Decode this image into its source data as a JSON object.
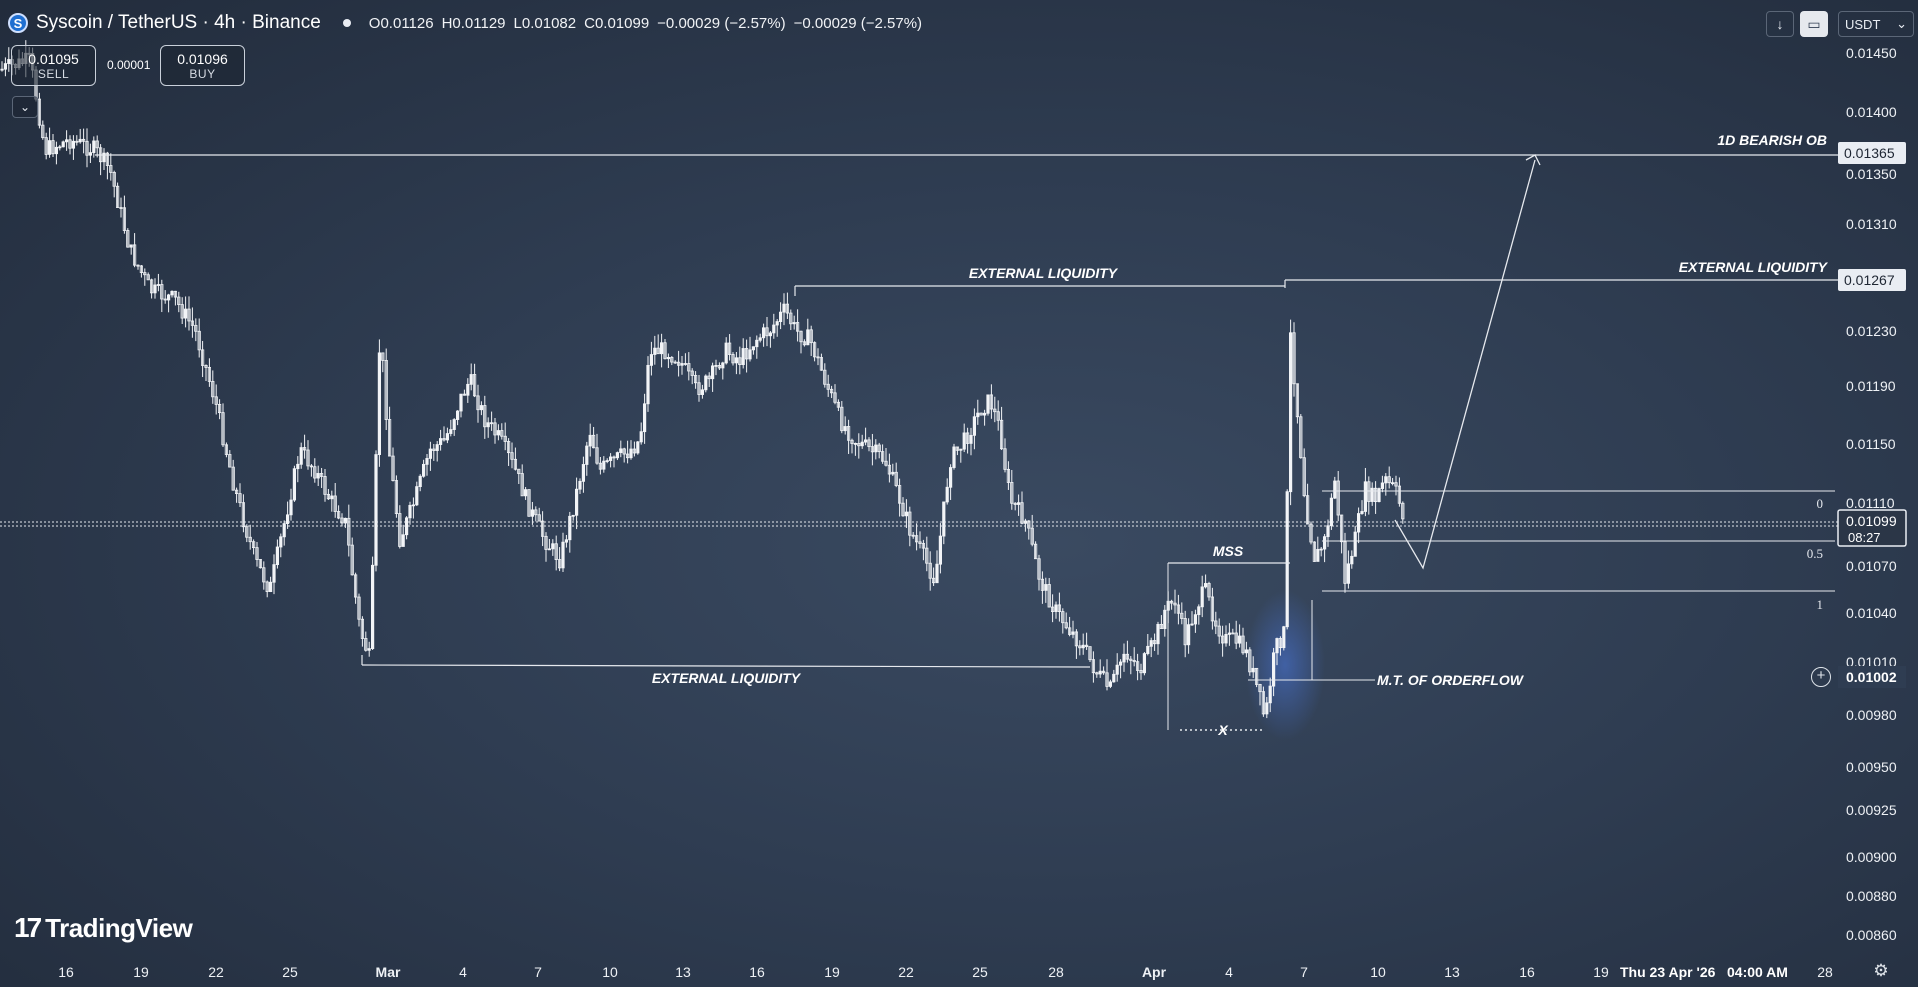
{
  "header": {
    "symbol": "Syscoin / TetherUS · 4h · Binance",
    "logo_letter": "S",
    "ohlc": [
      "O0.01126",
      "H0.01129",
      "L0.01082",
      "C0.01099",
      "−0.00029 (−2.57%)",
      "−0.00029 (−2.57%)"
    ]
  },
  "trade": {
    "sell_price": "0.01095",
    "sell_label": "SELL",
    "spread": "0.00001",
    "buy_price": "0.01096",
    "buy_label": "BUY"
  },
  "toolbar": {
    "currency": "USDT",
    "currency_chevron": "⌄",
    "download_icon": "↓",
    "screen_icon": "▭",
    "collapse_icon": "⌄"
  },
  "branding": {
    "mark": "17",
    "name": "TradingView"
  },
  "icons": {
    "gear": "gear-icon",
    "plus": "plus-circle-icon"
  },
  "colors": {
    "background": "#2f3d52",
    "candle": "#f2f4f7",
    "line": "#e6e9ee",
    "highlight": "#3c6ad6"
  },
  "chart_data": {
    "type": "candlestick",
    "title": "Syscoin / TetherUS · 4h · Binance",
    "x_ticks": [
      "16",
      "19",
      "22",
      "25",
      "Mar",
      "4",
      "7",
      "10",
      "13",
      "16",
      "19",
      "22",
      "25",
      "28",
      "Apr",
      "4",
      "7",
      "10",
      "13",
      "16",
      "19"
    ],
    "crosshair_date_label": "Thu 23 Apr '26",
    "crosshair_time_label": "04:00 AM",
    "x_last_tick": "28",
    "y_ticks": [
      "0.01450",
      "0.01400",
      "0.01350",
      "0.01310",
      "0.01230",
      "0.01190",
      "0.01150",
      "0.01110",
      "0.01070",
      "0.01040",
      "0.01010",
      "0.00980",
      "0.00950",
      "0.00925",
      "0.00900",
      "0.00880",
      "0.00860"
    ],
    "ylim": [
      0.0085,
      0.0146
    ],
    "price_labels": [
      {
        "value": "0.01365",
        "style": "box"
      },
      {
        "value": "0.01267",
        "style": "box"
      },
      {
        "value": "0.01099",
        "style": "current",
        "countdown": "08:27"
      },
      {
        "value": "0.01002",
        "style": "crosshair"
      }
    ],
    "close_path": [
      [
        "16",
        0.0144
      ],
      [
        "19",
        0.01345
      ],
      [
        "22",
        0.0127
      ],
      [
        "25",
        0.0108
      ],
      [
        "25b",
        0.0115
      ],
      [
        "26",
        0.0106
      ],
      [
        "Mar",
        0.0114
      ],
      [
        "4",
        0.0118
      ],
      [
        "7",
        0.0108
      ],
      [
        "10",
        0.0114
      ],
      [
        "13",
        0.012
      ],
      [
        "16",
        0.0123
      ],
      [
        "19",
        0.0117
      ],
      [
        "22",
        0.0109
      ],
      [
        "25",
        0.0118
      ],
      [
        "28",
        0.0103
      ],
      [
        "Apr",
        0.0101
      ],
      [
        "4",
        0.0104
      ],
      [
        "6",
        0.0096
      ],
      [
        "7a",
        0.0124
      ],
      [
        "7b",
        0.0106
      ],
      [
        "10",
        0.0112
      ],
      [
        "11",
        0.01099
      ]
    ],
    "annotations": [
      {
        "text": "1D BEARISH OB",
        "price": 0.01365
      },
      {
        "text": "EXTERNAL LIQUIDITY",
        "price": 0.01267
      },
      {
        "text": "EXTERNAL LIQUIDITY",
        "price": 0.01267
      },
      {
        "text": "EXTERNAL LIQUIDITY",
        "price": 0.01005
      },
      {
        "text": "MSS",
        "price": 0.01075
      },
      {
        "text": "M.T. OF ORDERFLOW",
        "price": 0.01002
      },
      {
        "text": "X",
        "price": 0.0097
      }
    ],
    "fib_levels": [
      {
        "label": "0",
        "price": 0.01115
      },
      {
        "label": "0.5",
        "price": 0.01083
      },
      {
        "label": "1",
        "price": 0.01052
      }
    ],
    "projection": [
      0.0111,
      0.0107,
      0.01365
    ]
  }
}
